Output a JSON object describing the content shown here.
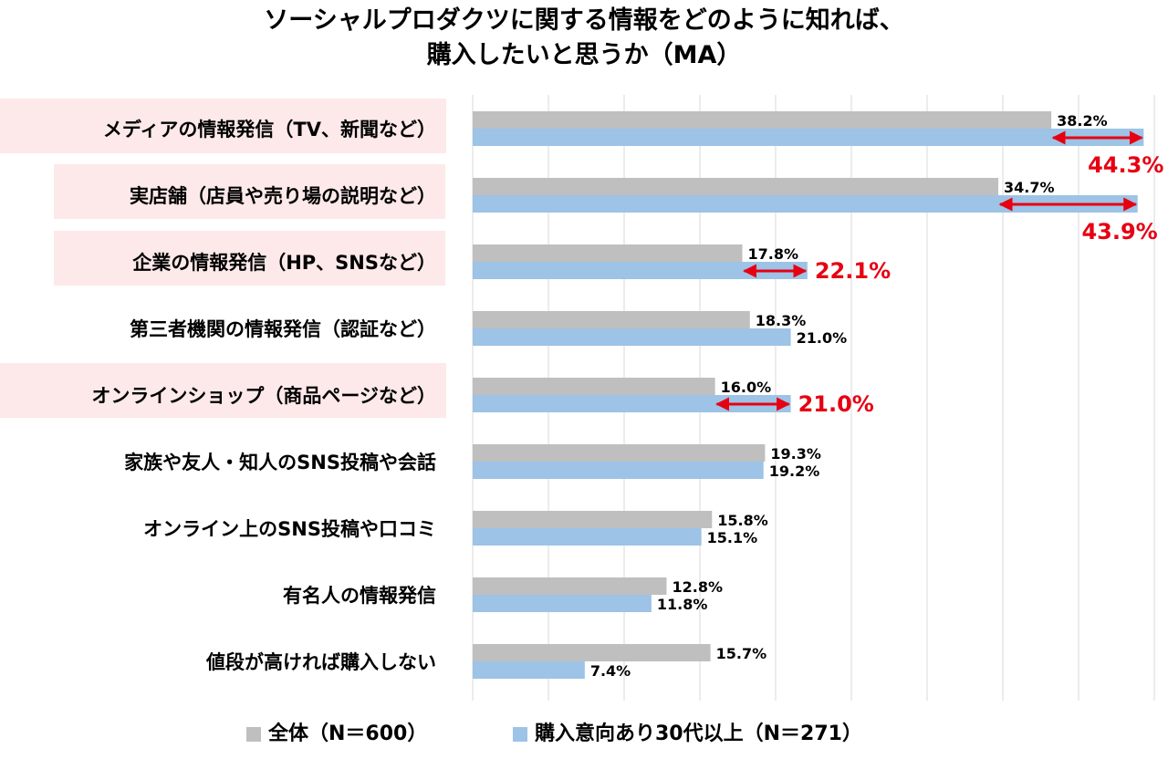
{
  "chart_data": {
    "type": "bar",
    "orientation": "horizontal",
    "title_line1": "ソーシャルプロダクツに関する情報をどのように知れば、",
    "title_line2": "購入したいと思うか（MA）",
    "categories": [
      "メディアの情報発信（TV、新聞など）",
      "実店舗（店員や売り場の説明など）",
      "企業の情報発信（HP、SNSなど）",
      "第三者機関の情報発信（認証など）",
      "オンラインショップ（商品ページなど）",
      "家族や友人・知人のSNS投稿や会話",
      "オンライン上のSNS投稿や口コミ",
      "有名人の情報発信",
      "値段が高ければ購入しない"
    ],
    "highlighted_categories": [
      0,
      1,
      2,
      4
    ],
    "series": [
      {
        "name": "全体（N＝600）",
        "color": "#bfbfbf",
        "values": [
          38.2,
          34.7,
          17.8,
          18.3,
          16.0,
          19.3,
          15.8,
          12.8,
          15.7
        ]
      },
      {
        "name": "購入意向あり30代以上（N＝271）",
        "color": "#9dc3e6",
        "values": [
          44.3,
          43.9,
          22.1,
          21.0,
          21.0,
          19.2,
          15.1,
          11.8,
          7.4
        ]
      }
    ],
    "xlim": [
      0,
      45
    ],
    "grid": true,
    "legend": "bottom",
    "highlight_color": "#e60012",
    "highlight_bg": "#fde9e9"
  }
}
